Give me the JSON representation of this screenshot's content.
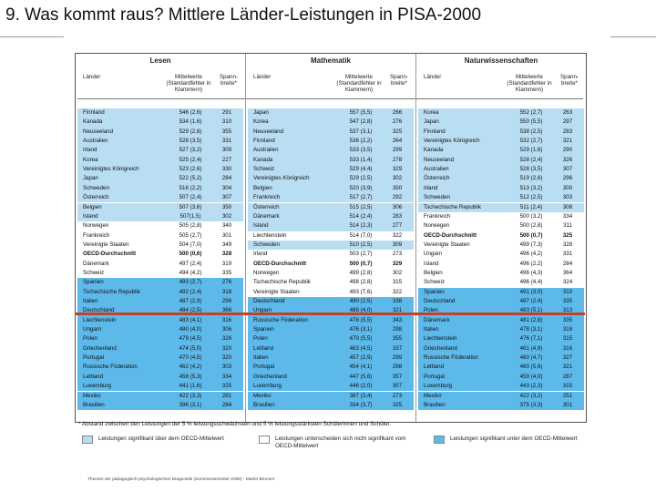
{
  "title": "9. Was kommt raus? Mittlere Länder-Leistungen in PISA-2000",
  "colors": {
    "above": "#b9ddf3",
    "none": "#ffffff",
    "below": "#5db9ea",
    "redline": "#c0422b"
  },
  "sections": [
    {
      "name": "Lesen",
      "headers": {
        "country": "Länder",
        "mean": "Mittelwerte (Standardfehler in Klammern)",
        "spread": "Spann- breite*"
      },
      "rows": [
        {
          "c": "Finnland",
          "m": "546 (2,6)",
          "s": "291",
          "sig": "above"
        },
        {
          "c": "Kanada",
          "m": "534 (1,6)",
          "s": "310",
          "sig": "above"
        },
        {
          "c": "Neuseeland",
          "m": "529 (2,8)",
          "s": "355",
          "sig": "above"
        },
        {
          "c": "Australien",
          "m": "528 (3,5)",
          "s": "331",
          "sig": "above"
        },
        {
          "c": "Irland",
          "m": "527 (3,2)",
          "s": "309",
          "sig": "above"
        },
        {
          "c": "Korea",
          "m": "525 (2,4)",
          "s": "227",
          "sig": "above"
        },
        {
          "c": "Vereinigtes Königreich",
          "m": "523 (2,6)",
          "s": "330",
          "sig": "above"
        },
        {
          "c": "Japan",
          "m": "522 (5,2)",
          "s": "284",
          "sig": "above"
        },
        {
          "c": "Schweden",
          "m": "516 (2,2)",
          "s": "304",
          "sig": "above"
        },
        {
          "c": "Österreich",
          "m": "507 (2,4)",
          "s": "307",
          "sig": "above"
        },
        {
          "c": "Belgien",
          "m": "507 (3,6)",
          "s": "350",
          "sig": "above"
        },
        {
          "c": "Island",
          "m": "507(1,5)",
          "s": "302",
          "sig": "above"
        },
        {
          "c": "Norwegen",
          "m": "505 (2,8)",
          "s": "340",
          "sig": "none"
        },
        {
          "c": "Frankreich",
          "m": "505 (2,7)",
          "s": "301",
          "sig": "none"
        },
        {
          "c": "Vereinigte Staaten",
          "m": "504 (7,0)",
          "s": "349",
          "sig": "none"
        },
        {
          "c": "OECD-Durchschnitt",
          "m": "500 (0,6)",
          "s": "328",
          "sig": "none",
          "oecd": true
        },
        {
          "c": "Dänemark",
          "m": "497 (2,4)",
          "s": "319",
          "sig": "none"
        },
        {
          "c": "Schweiz",
          "m": "494 (4,2)",
          "s": "335",
          "sig": "none"
        },
        {
          "c": "Spanien",
          "m": "493 (2,7)",
          "s": "276",
          "sig": "below"
        },
        {
          "c": "Tschechische Republik",
          "m": "492 (2,4)",
          "s": "318",
          "sig": "below"
        },
        {
          "c": "Italien",
          "m": "487 (2,9)",
          "s": "296",
          "sig": "below"
        },
        {
          "c": "Deutschland",
          "m": "484 (2,5)",
          "s": "366",
          "sig": "below"
        },
        {
          "c": "Liechtenstein",
          "m": "483 (4,1)",
          "s": "316",
          "sig": "below"
        },
        {
          "c": "Ungarn",
          "m": "480 (4,0)",
          "s": "306",
          "sig": "below"
        },
        {
          "c": "Polen",
          "m": "479 (4,5)",
          "s": "326",
          "sig": "below"
        },
        {
          "c": "Griechenland",
          "m": "474 (5,0)",
          "s": "320",
          "sig": "below"
        },
        {
          "c": "Portugal",
          "m": "470 (4,5)",
          "s": "320",
          "sig": "below"
        },
        {
          "c": "Russische Föderation",
          "m": "462 (4,2)",
          "s": "303",
          "sig": "below"
        },
        {
          "c": "Lettland",
          "m": "458 (5,3)",
          "s": "334",
          "sig": "below"
        },
        {
          "c": "Luxemburg",
          "m": "441 (1,6)",
          "s": "325",
          "sig": "below"
        },
        {
          "c": "Mexiko",
          "m": "422 (3,3)",
          "s": "281",
          "sig": "below"
        },
        {
          "c": "Brasilien",
          "m": "396 (3,1)",
          "s": "284",
          "sig": "below"
        }
      ]
    },
    {
      "name": "Mathematik",
      "headers": {
        "country": "Länder",
        "mean": "Mittelwerte (Standardfehler in Klammern)",
        "spread": "Spann- breite*"
      },
      "rows": [
        {
          "c": "Japan",
          "m": "557 (5,5)",
          "s": "266",
          "sig": "above"
        },
        {
          "c": "Korea",
          "m": "547 (2,8)",
          "s": "276",
          "sig": "above"
        },
        {
          "c": "Neuseeland",
          "m": "537 (3,1)",
          "s": "325",
          "sig": "above"
        },
        {
          "c": "Finnland",
          "m": "536 (2,2)",
          "s": "264",
          "sig": "above"
        },
        {
          "c": "Australien",
          "m": "533 (3,5)",
          "s": "299",
          "sig": "above"
        },
        {
          "c": "Kanada",
          "m": "533 (1,4)",
          "s": "278",
          "sig": "above"
        },
        {
          "c": "Schweiz",
          "m": "529 (4,4)",
          "s": "329",
          "sig": "above"
        },
        {
          "c": "Vereinigtes Königreich",
          "m": "529 (2,5)",
          "s": "302",
          "sig": "above"
        },
        {
          "c": "Belgien",
          "m": "520 (3,9)",
          "s": "350",
          "sig": "above"
        },
        {
          "c": "Frankreich",
          "m": "517 (2,7)",
          "s": "292",
          "sig": "above"
        },
        {
          "c": "Österreich",
          "m": "515 (2,5)",
          "s": "306",
          "sig": "above"
        },
        {
          "c": "Dänemark",
          "m": "514 (2,4)",
          "s": "283",
          "sig": "above"
        },
        {
          "c": "Island",
          "m": "514 (2,3)",
          "s": "277",
          "sig": "above"
        },
        {
          "c": "Liechtenstein",
          "m": "514 (7,0)",
          "s": "322",
          "sig": "none"
        },
        {
          "c": "Schweden",
          "m": "510 (2,5)",
          "s": "309",
          "sig": "above"
        },
        {
          "c": "Irland",
          "m": "503 (2,7)",
          "s": "273",
          "sig": "none"
        },
        {
          "c": "OECD-Durchschnitt",
          "m": "500 (0,7)",
          "s": "329",
          "sig": "none",
          "oecd": true
        },
        {
          "c": "Norwegen",
          "m": "499 (2,8)",
          "s": "302",
          "sig": "none"
        },
        {
          "c": "Tschechische Republik",
          "m": "498 (2,8)",
          "s": "315",
          "sig": "none"
        },
        {
          "c": "Vereinigte Staaten",
          "m": "493 (7,6)",
          "s": "322",
          "sig": "none"
        },
        {
          "c": "Deutschland",
          "m": "490 (2,5)",
          "s": "338",
          "sig": "below"
        },
        {
          "c": "Ungarn",
          "m": "488 (4,0)",
          "s": "321",
          "sig": "below"
        },
        {
          "c": "Russische Föderation",
          "m": "478 (5,5)",
          "s": "343",
          "sig": "below"
        },
        {
          "c": "Spanien",
          "m": "476 (3,1)",
          "s": "298",
          "sig": "below"
        },
        {
          "c": "Polen",
          "m": "470 (5,5)",
          "s": "355",
          "sig": "below"
        },
        {
          "c": "Lettland",
          "m": "463 (4,5)",
          "s": "337",
          "sig": "below"
        },
        {
          "c": "Italien",
          "m": "457 (2,9)",
          "s": "299",
          "sig": "below"
        },
        {
          "c": "Portugal",
          "m": "454 (4,1)",
          "s": "298",
          "sig": "below"
        },
        {
          "c": "Griechenland",
          "m": "447 (5,6)",
          "s": "357",
          "sig": "below"
        },
        {
          "c": "Luxemburg",
          "m": "446 (2,0)",
          "s": "307",
          "sig": "below"
        },
        {
          "c": "Mexiko",
          "m": "387 (3,4)",
          "s": "273",
          "sig": "below"
        },
        {
          "c": "Brasilien",
          "m": "334 (3,7)",
          "s": "325",
          "sig": "below"
        }
      ]
    },
    {
      "name": "Naturwissenschaften",
      "headers": {
        "country": "Länder",
        "mean": "Mittelwerte (Standardfehler in Klammern)",
        "spread": "Spann- breite*"
      },
      "rows": [
        {
          "c": "Korea",
          "m": "552 (2,7)",
          "s": "263",
          "sig": "above"
        },
        {
          "c": "Japan",
          "m": "550 (5,5)",
          "s": "297",
          "sig": "above"
        },
        {
          "c": "Finnland",
          "m": "538 (2,5)",
          "s": "283",
          "sig": "above"
        },
        {
          "c": "Vereinigtes Königreich",
          "m": "532 (2,7)",
          "s": "321",
          "sig": "above"
        },
        {
          "c": "Kanada",
          "m": "529 (1,6)",
          "s": "290",
          "sig": "above"
        },
        {
          "c": "Neuseeland",
          "m": "528 (2,4)",
          "s": "326",
          "sig": "above"
        },
        {
          "c": "Australien",
          "m": "528 (3,5)",
          "s": "307",
          "sig": "above"
        },
        {
          "c": "Österreich",
          "m": "519 (2,6)",
          "s": "296",
          "sig": "above"
        },
        {
          "c": "Irland",
          "m": "513 (3,2)",
          "s": "300",
          "sig": "above"
        },
        {
          "c": "Schweden",
          "m": "512 (2,5)",
          "s": "303",
          "sig": "above"
        },
        {
          "c": "Tschechische Republik",
          "m": "511 (2,4)",
          "s": "308",
          "sig": "above"
        },
        {
          "c": "Frankreich",
          "m": "500 (3,2)",
          "s": "334",
          "sig": "none"
        },
        {
          "c": "Norwegen",
          "m": "500 (2,8)",
          "s": "311",
          "sig": "none"
        },
        {
          "c": "OECD-Durchschnitt",
          "m": "500 (0,7)",
          "s": "325",
          "sig": "none",
          "oecd": true
        },
        {
          "c": "Vereinigte Staaten",
          "m": "499 (7,3)",
          "s": "328",
          "sig": "none"
        },
        {
          "c": "Ungarn",
          "m": "496 (4,2)",
          "s": "331",
          "sig": "none"
        },
        {
          "c": "Island",
          "m": "496 (2,2)",
          "s": "284",
          "sig": "none"
        },
        {
          "c": "Belgien",
          "m": "496 (4,3)",
          "s": "364",
          "sig": "none"
        },
        {
          "c": "Schweiz",
          "m": "496 (4,4)",
          "s": "324",
          "sig": "none"
        },
        {
          "c": "Spanien",
          "m": "491 (3,0)",
          "s": "310",
          "sig": "below"
        },
        {
          "c": "Deutschland",
          "m": "487 (2,4)",
          "s": "335",
          "sig": "below"
        },
        {
          "c": "Polen",
          "m": "483 (5,1)",
          "s": "313",
          "sig": "below"
        },
        {
          "c": "Dänemark",
          "m": "481 (2,8)",
          "s": "335",
          "sig": "below"
        },
        {
          "c": "Italien",
          "m": "478 (3,1)",
          "s": "318",
          "sig": "below"
        },
        {
          "c": "Liechtenstein",
          "m": "476 (7,1)",
          "s": "315",
          "sig": "below"
        },
        {
          "c": "Griechenland",
          "m": "461 (4,9)",
          "s": "316",
          "sig": "below"
        },
        {
          "c": "Russische Föderation",
          "m": "460 (4,7)",
          "s": "327",
          "sig": "below"
        },
        {
          "c": "Lettland",
          "m": "460 (5,6)",
          "s": "321",
          "sig": "below"
        },
        {
          "c": "Portugal",
          "m": "459 (4,0)",
          "s": "287",
          "sig": "below"
        },
        {
          "c": "Luxemburg",
          "m": "443 (2,3)",
          "s": "315",
          "sig": "below"
        },
        {
          "c": "Mexiko",
          "m": "422 (3,2)",
          "s": "251",
          "sig": "below"
        },
        {
          "c": "Brasilien",
          "m": "375 (3,3)",
          "s": "301",
          "sig": "below"
        }
      ]
    }
  ],
  "footnote": "* Abstand zwischen den Leistungen der 5 % leistungsschwächsten und 5 % leistungsstärksten Schülerinnen und Schüler.",
  "legend": [
    {
      "label": "Leistungen signifikant über dem OECD-Mittelwert",
      "sig": "above"
    },
    {
      "label": "Leistungen unterscheiden sich nicht signifikant vom OECD-Mittelwert",
      "sig": "none"
    },
    {
      "label": "Leistungen signifikant unter dem OECD-Mittelwert",
      "sig": "below"
    }
  ],
  "source": "Themen der pädagogisch-psychologischen Diagnostik (Sommersemester 2008) - Martin Brunner"
}
